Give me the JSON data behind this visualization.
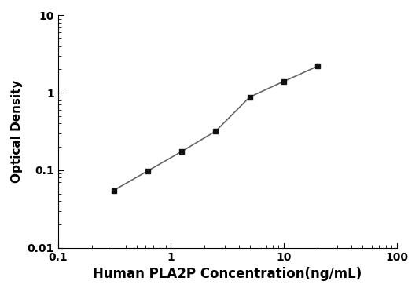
{
  "x": [
    0.313,
    0.625,
    1.25,
    2.5,
    5.0,
    10.0,
    20.0
  ],
  "y": [
    0.055,
    0.098,
    0.175,
    0.32,
    0.88,
    1.4,
    2.2
  ],
  "xlabel": "Human PLA2P Concentration(ng/mL)",
  "ylabel": "Optical Density",
  "xlim": [
    0.1,
    100
  ],
  "ylim": [
    0.01,
    10
  ],
  "xticks": [
    0.1,
    1,
    10,
    100
  ],
  "xtick_labels": [
    "0.1",
    "1",
    "10",
    "100"
  ],
  "yticks": [
    0.01,
    0.1,
    1,
    10
  ],
  "ytick_labels": [
    "0.01",
    "0.1",
    "1",
    "10"
  ],
  "line_color": "#666666",
  "marker_color": "#111111",
  "marker": "s",
  "marker_size": 5,
  "line_width": 1.2,
  "xlabel_fontsize": 12,
  "ylabel_fontsize": 11,
  "tick_fontsize": 10,
  "background_color": "#ffffff"
}
